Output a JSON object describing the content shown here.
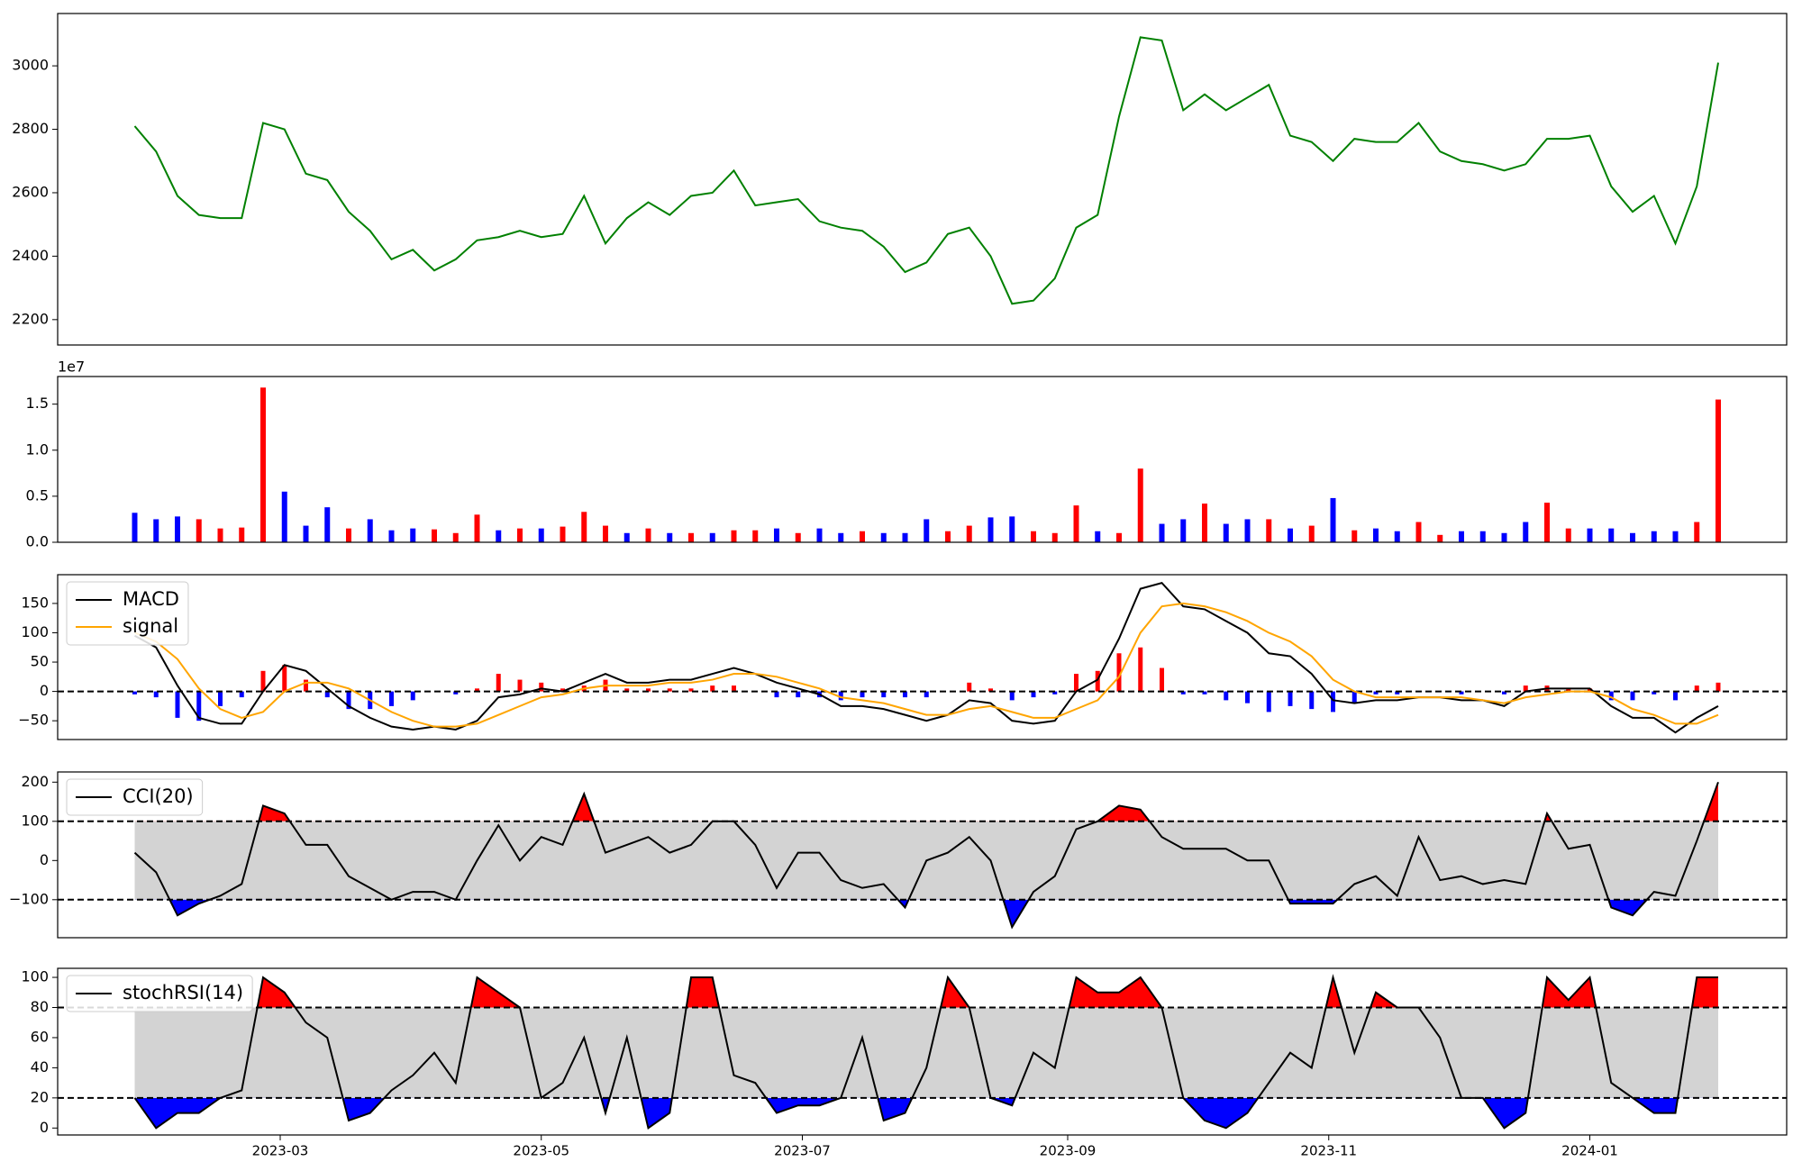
{
  "chart_data": [
    {
      "type": "line",
      "x": [
        25,
        30,
        35,
        40,
        45,
        50,
        55,
        60,
        65,
        70,
        75,
        80,
        85,
        90,
        95,
        100,
        105,
        110,
        115,
        120,
        125,
        130,
        135,
        140,
        145,
        150,
        155,
        160,
        165,
        170,
        175,
        180,
        185,
        190,
        195,
        200,
        205,
        210,
        215,
        220,
        225,
        230,
        235,
        240,
        245,
        250,
        255,
        260,
        265,
        270,
        275,
        280,
        285,
        290,
        295,
        300,
        305,
        310,
        315,
        320,
        325,
        330,
        335,
        340,
        345,
        350,
        355,
        360,
        365,
        370,
        375,
        380,
        385,
        390,
        395
      ],
      "series": [
        {
          "color": "green",
          "values": [
            2810,
            2730,
            2590,
            2530,
            2520,
            2520,
            2820,
            2800,
            2660,
            2640,
            2540,
            2480,
            2390,
            2420,
            2355,
            2390,
            2450,
            2460,
            2480,
            2460,
            2470,
            2590,
            2440,
            2520,
            2570,
            2530,
            2590,
            2600,
            2670,
            2560,
            2570,
            2580,
            2510,
            2490,
            2480,
            2430,
            2350,
            2380,
            2470,
            2490,
            2400,
            2250,
            2260,
            2330,
            2490,
            2530,
            2840,
            3090,
            3080,
            2860,
            2910,
            2860,
            2900,
            2940,
            2780,
            2760,
            2700,
            2770,
            2760,
            2760,
            2820,
            2730,
            2700,
            2690,
            2670,
            2690,
            2770,
            2770,
            2780,
            2620,
            2540,
            2590,
            2440,
            2620,
            3010
          ]
        }
      ],
      "xlim": [
        7,
        411
      ],
      "ylim": [
        2120,
        3165
      ],
      "yticks": [
        2200,
        2400,
        2600,
        2800,
        3000
      ]
    },
    {
      "type": "bar",
      "x": [
        25,
        30,
        35,
        40,
        45,
        50,
        55,
        60,
        65,
        70,
        75,
        80,
        85,
        90,
        95,
        100,
        105,
        110,
        115,
        120,
        125,
        130,
        135,
        140,
        145,
        150,
        155,
        160,
        165,
        170,
        175,
        180,
        185,
        190,
        195,
        200,
        205,
        210,
        215,
        220,
        225,
        230,
        235,
        240,
        245,
        250,
        255,
        260,
        265,
        270,
        275,
        280,
        285,
        290,
        295,
        300,
        305,
        310,
        315,
        320,
        325,
        330,
        335,
        340,
        345,
        350,
        355,
        360,
        365,
        370,
        375,
        380,
        385,
        390,
        395
      ],
      "values": [
        0.32,
        0.25,
        0.28,
        0.25,
        0.15,
        0.16,
        1.68,
        0.55,
        0.18,
        0.38,
        0.15,
        0.25,
        0.13,
        0.15,
        0.14,
        0.1,
        0.3,
        0.13,
        0.15,
        0.15,
        0.17,
        0.33,
        0.18,
        0.1,
        0.15,
        0.1,
        0.1,
        0.1,
        0.13,
        0.13,
        0.15,
        0.1,
        0.15,
        0.1,
        0.12,
        0.1,
        0.1,
        0.25,
        0.12,
        0.18,
        0.27,
        0.28,
        0.12,
        0.1,
        0.4,
        0.12,
        0.1,
        0.8,
        0.2,
        0.25,
        0.42,
        0.2,
        0.25,
        0.25,
        0.15,
        0.18,
        0.48,
        0.13,
        0.15,
        0.12,
        0.22,
        0.08,
        0.12,
        0.12,
        0.1,
        0.22,
        0.43,
        0.15,
        0.15,
        0.15,
        0.1,
        0.12,
        0.12,
        0.22,
        1.55
      ],
      "colors": [
        "blue",
        "blue",
        "blue",
        "red",
        "red",
        "red",
        "red",
        "blue",
        "blue",
        "blue",
        "red",
        "blue",
        "blue",
        "blue",
        "red",
        "red",
        "red",
        "blue",
        "red",
        "blue",
        "red",
        "red",
        "red",
        "blue",
        "red",
        "blue",
        "red",
        "blue",
        "red",
        "red",
        "blue",
        "red",
        "blue",
        "blue",
        "red",
        "blue",
        "blue",
        "blue",
        "red",
        "red",
        "blue",
        "blue",
        "red",
        "red",
        "red",
        "blue",
        "red",
        "red",
        "blue",
        "blue",
        "red",
        "blue",
        "blue",
        "red",
        "blue",
        "red",
        "blue",
        "red",
        "blue",
        "blue",
        "red",
        "red",
        "blue",
        "blue",
        "blue",
        "blue",
        "red",
        "red",
        "blue",
        "blue",
        "blue",
        "blue",
        "blue",
        "red",
        "red"
      ],
      "offset_text": "1e7",
      "xlim": [
        7,
        411
      ],
      "ylim": [
        0,
        1.8
      ],
      "yticks": [
        {
          "value": 0,
          "label": "0.0"
        },
        {
          "value": 0.5,
          "label": "0.5"
        },
        {
          "value": 1,
          "label": "1.0"
        },
        {
          "value": 1.5,
          "label": "1.5"
        }
      ]
    },
    {
      "type": "line",
      "x": [
        25,
        30,
        35,
        40,
        45,
        50,
        55,
        60,
        65,
        70,
        75,
        80,
        85,
        90,
        95,
        100,
        105,
        110,
        115,
        120,
        125,
        130,
        135,
        140,
        145,
        150,
        155,
        160,
        165,
        170,
        175,
        180,
        185,
        190,
        195,
        200,
        205,
        210,
        215,
        220,
        225,
        230,
        235,
        240,
        245,
        250,
        255,
        260,
        265,
        270,
        275,
        280,
        285,
        290,
        295,
        300,
        305,
        310,
        315,
        320,
        325,
        330,
        335,
        340,
        345,
        350,
        355,
        360,
        365,
        370,
        375,
        380,
        385,
        390,
        395
      ],
      "series": [
        {
          "name": "MACD",
          "color": "black",
          "values": [
            95,
            75,
            10,
            -45,
            -55,
            -55,
            0,
            45,
            35,
            5,
            -25,
            -45,
            -60,
            -65,
            -60,
            -65,
            -50,
            -10,
            -5,
            5,
            0,
            15,
            30,
            15,
            15,
            20,
            20,
            30,
            40,
            30,
            15,
            5,
            -5,
            -25,
            -25,
            -30,
            -40,
            -50,
            -40,
            -15,
            -20,
            -50,
            -55,
            -50,
            0,
            20,
            90,
            175,
            185,
            145,
            140,
            120,
            100,
            65,
            60,
            30,
            -15,
            -20,
            -15,
            -15,
            -10,
            -10,
            -15,
            -15,
            -25,
            0,
            5,
            5,
            5,
            -25,
            -45,
            -45,
            -70,
            -45,
            -25
          ]
        },
        {
          "name": "signal",
          "color": "orange",
          "values": [
            100,
            85,
            55,
            5,
            -30,
            -45,
            -35,
            0,
            15,
            15,
            5,
            -15,
            -35,
            -50,
            -60,
            -60,
            -55,
            -40,
            -25,
            -10,
            -5,
            5,
            10,
            10,
            10,
            15,
            15,
            20,
            30,
            30,
            25,
            15,
            5,
            -10,
            -15,
            -20,
            -30,
            -40,
            -40,
            -30,
            -25,
            -35,
            -45,
            -45,
            -30,
            -15,
            25,
            100,
            145,
            150,
            145,
            135,
            120,
            100,
            85,
            60,
            20,
            0,
            -10,
            -10,
            -10,
            -10,
            -10,
            -15,
            -20,
            -10,
            -5,
            0,
            0,
            -10,
            -30,
            -40,
            -55,
            -55,
            -40
          ]
        }
      ],
      "histogram": {
        "values": [
          -5,
          -10,
          -45,
          -50,
          -25,
          -10,
          35,
          45,
          20,
          -10,
          -30,
          -30,
          -25,
          -15,
          0,
          -5,
          5,
          30,
          20,
          15,
          5,
          10,
          20,
          5,
          5,
          5,
          5,
          10,
          10,
          0,
          -10,
          -10,
          -10,
          -15,
          -10,
          -10,
          -10,
          -10,
          0,
          15,
          5,
          -15,
          -10,
          -5,
          30,
          35,
          65,
          75,
          40,
          -5,
          -5,
          -15,
          -20,
          -35,
          -25,
          -30,
          -35,
          -20,
          -5,
          -5,
          0,
          0,
          -5,
          0,
          -5,
          10,
          10,
          5,
          5,
          -15,
          -15,
          -5,
          -15,
          10,
          15
        ],
        "positive_color": "red",
        "negative_color": "blue"
      },
      "reference_lines": [
        0
      ],
      "legend": "upper left",
      "xlim": [
        7,
        411
      ],
      "ylim": [
        -82,
        199
      ],
      "yticks": [
        {
          "value": -50,
          "label": "−50"
        },
        0,
        50,
        100,
        150
      ]
    },
    {
      "type": "line",
      "x": [
        25,
        30,
        35,
        40,
        45,
        50,
        55,
        60,
        65,
        70,
        75,
        80,
        85,
        90,
        95,
        100,
        105,
        110,
        115,
        120,
        125,
        130,
        135,
        140,
        145,
        150,
        155,
        160,
        165,
        170,
        175,
        180,
        185,
        190,
        195,
        200,
        205,
        210,
        215,
        220,
        225,
        230,
        235,
        240,
        245,
        250,
        255,
        260,
        265,
        270,
        275,
        280,
        285,
        290,
        295,
        300,
        305,
        310,
        315,
        320,
        325,
        330,
        335,
        340,
        345,
        350,
        355,
        360,
        365,
        370,
        375,
        380,
        385,
        390,
        395
      ],
      "series": [
        {
          "name": "CCI(20)",
          "color": "black",
          "values": [
            20,
            -30,
            -140,
            -110,
            -90,
            -60,
            140,
            120,
            40,
            40,
            -40,
            -70,
            -100,
            -80,
            -80,
            -100,
            0,
            90,
            0,
            60,
            40,
            170,
            20,
            40,
            60,
            20,
            40,
            100,
            100,
            40,
            -70,
            20,
            20,
            -50,
            -70,
            -60,
            -120,
            0,
            20,
            60,
            0,
            -170,
            -80,
            -40,
            80,
            100,
            140,
            130,
            60,
            30,
            30,
            30,
            0,
            0,
            -110,
            -110,
            -110,
            -60,
            -40,
            -90,
            60,
            -50,
            -40,
            -60,
            -50,
            -60,
            120,
            30,
            40,
            -120,
            -140,
            -80,
            -90,
            50,
            200
          ]
        }
      ],
      "reference_lines": [
        -100,
        100
      ],
      "band_color": "lightgray",
      "above_color": "red",
      "below_color": "blue",
      "legend": "upper left",
      "xlim": [
        7,
        411
      ],
      "ylim": [
        -197,
        226
      ],
      "yticks": [
        {
          "value": -100,
          "label": "−100"
        },
        0,
        100,
        200
      ]
    },
    {
      "type": "line",
      "x": [
        25,
        30,
        35,
        40,
        45,
        50,
        55,
        60,
        65,
        70,
        75,
        80,
        85,
        90,
        95,
        100,
        105,
        110,
        115,
        120,
        125,
        130,
        135,
        140,
        145,
        150,
        155,
        160,
        165,
        170,
        175,
        180,
        185,
        190,
        195,
        200,
        205,
        210,
        215,
        220,
        225,
        230,
        235,
        240,
        245,
        250,
        255,
        260,
        265,
        270,
        275,
        280,
        285,
        290,
        295,
        300,
        305,
        310,
        315,
        320,
        325,
        330,
        335,
        340,
        345,
        350,
        355,
        360,
        365,
        370,
        375,
        380,
        385,
        390,
        395
      ],
      "series": [
        {
          "name": "stochRSI(14)",
          "color": "black",
          "values": [
            20,
            0,
            10,
            10,
            20,
            25,
            100,
            90,
            70,
            60,
            5,
            10,
            25,
            35,
            50,
            30,
            100,
            90,
            80,
            20,
            30,
            60,
            10,
            60,
            0,
            10,
            100,
            100,
            35,
            30,
            10,
            15,
            15,
            20,
            60,
            5,
            10,
            40,
            100,
            80,
            20,
            15,
            50,
            40,
            100,
            90,
            90,
            100,
            80,
            20,
            5,
            0,
            10,
            30,
            50,
            40,
            100,
            50,
            90,
            80,
            80,
            60,
            20,
            20,
            0,
            10,
            100,
            85,
            100,
            30,
            20,
            10,
            10,
            100,
            100
          ]
        }
      ],
      "reference_lines": [
        20,
        80
      ],
      "band_color": "lightgray",
      "above_color": "red",
      "below_color": "blue",
      "legend": "upper left",
      "xlim": [
        7,
        411
      ],
      "ylim": [
        -4.6,
        106
      ],
      "yticks": [
        0,
        20,
        40,
        60,
        80,
        100
      ],
      "xticks": [
        {
          "value": 59,
          "label": "2023-03"
        },
        {
          "value": 120,
          "label": "2023-05"
        },
        {
          "value": 181,
          "label": "2023-07"
        },
        {
          "value": 243,
          "label": "2023-09"
        },
        {
          "value": 304,
          "label": "2023-11"
        },
        {
          "value": 365,
          "label": "2024-01"
        }
      ]
    }
  ]
}
